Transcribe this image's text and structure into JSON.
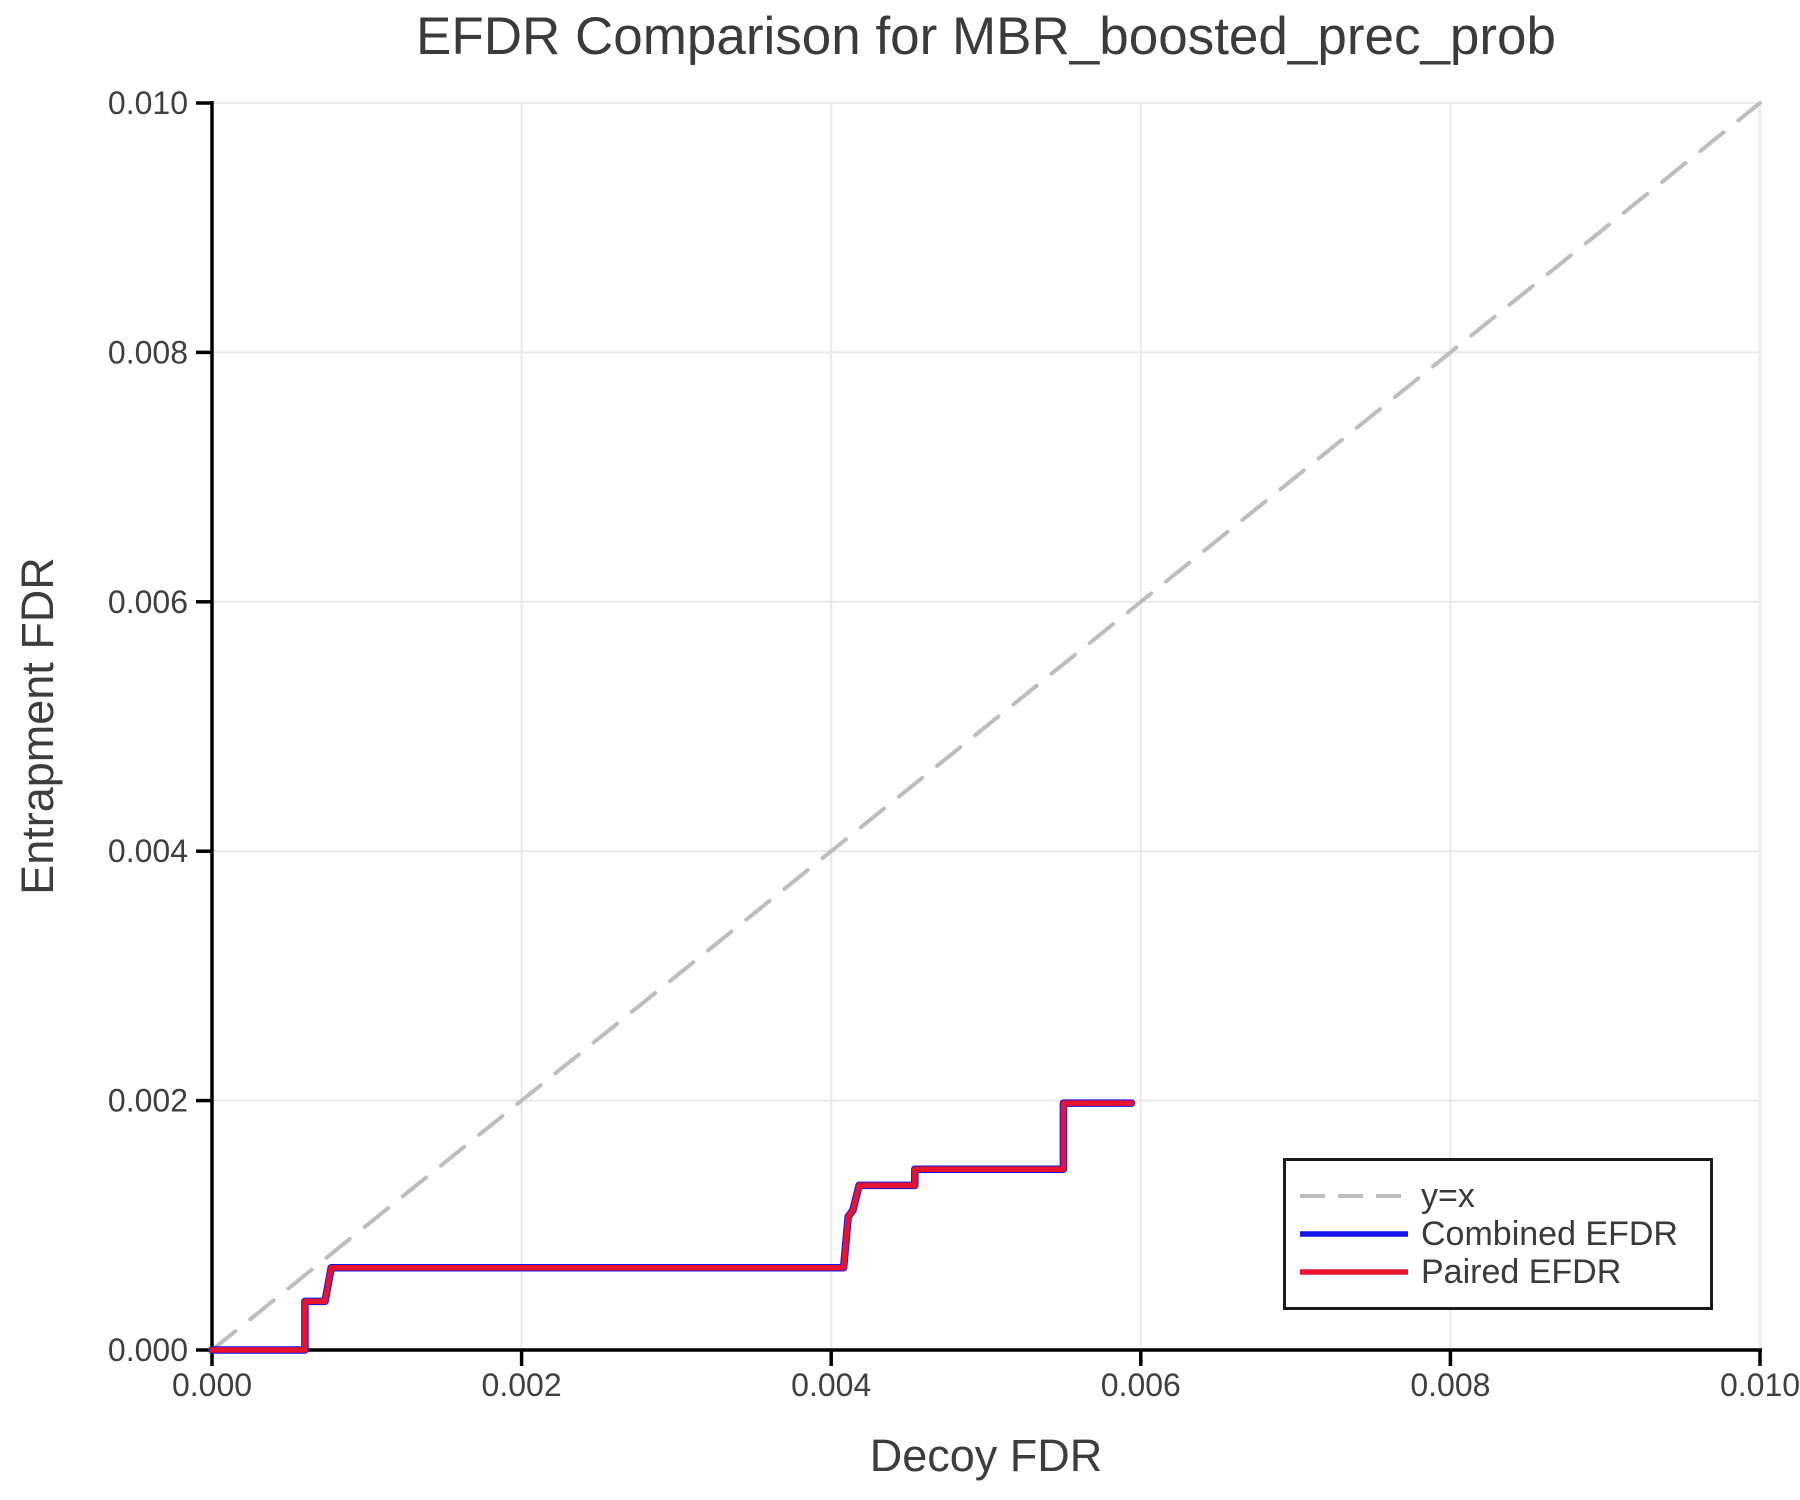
{
  "page": {
    "background": "#ffffff"
  },
  "chart_data": {
    "type": "line",
    "title": "EFDR Comparison for MBR_boosted_prec_prob",
    "xlabel": "Decoy FDR",
    "ylabel": "Entrapment FDR",
    "xlim": [
      0.0,
      0.01
    ],
    "ylim": [
      0.0,
      0.01
    ],
    "grid": true,
    "legend_position": "lower right",
    "xticks": {
      "values": [
        0.0,
        0.002,
        0.004,
        0.006,
        0.008,
        0.01
      ],
      "labels": [
        "0.000",
        "0.002",
        "0.004",
        "0.006",
        "0.008",
        "0.010"
      ]
    },
    "yticks": {
      "values": [
        0.0,
        0.002,
        0.004,
        0.006,
        0.008,
        0.01
      ],
      "labels": [
        "0.000",
        "0.002",
        "0.004",
        "0.006",
        "0.008",
        "0.010"
      ]
    },
    "series": [
      {
        "name": "y=x",
        "style": "dashed",
        "color": "#bdbdbd",
        "points": [
          [
            0.0,
            0.0
          ],
          [
            0.01,
            0.01
          ]
        ]
      },
      {
        "name": "Combined EFDR",
        "style": "solid",
        "color": "#1414e8",
        "points": [
          [
            0.0,
            0.0
          ],
          [
            0.0006,
            0.0
          ],
          [
            0.0006,
            0.00039
          ],
          [
            0.00073,
            0.00039
          ],
          [
            0.00077,
            0.00066
          ],
          [
            0.00408,
            0.00066
          ],
          [
            0.00411,
            0.00107
          ],
          [
            0.00414,
            0.00112
          ],
          [
            0.00418,
            0.00132
          ],
          [
            0.00454,
            0.00132
          ],
          [
            0.00454,
            0.00145
          ],
          [
            0.0055,
            0.00145
          ],
          [
            0.0055,
            0.00198
          ],
          [
            0.00594,
            0.00198
          ]
        ]
      },
      {
        "name": "Paired EFDR",
        "style": "solid",
        "color": "#e8132d",
        "points": [
          [
            0.0,
            0.0
          ],
          [
            0.0006,
            0.0
          ],
          [
            0.0006,
            0.00039
          ],
          [
            0.00073,
            0.00039
          ],
          [
            0.00077,
            0.00066
          ],
          [
            0.00408,
            0.00066
          ],
          [
            0.00411,
            0.00107
          ],
          [
            0.00414,
            0.00112
          ],
          [
            0.00418,
            0.00132
          ],
          [
            0.00454,
            0.00132
          ],
          [
            0.00454,
            0.00145
          ],
          [
            0.0055,
            0.00145
          ],
          [
            0.0055,
            0.00198
          ],
          [
            0.00594,
            0.00198
          ]
        ]
      }
    ],
    "colors": {
      "grid": "#e9e9e9",
      "spine": "#000000",
      "tick": "#000000",
      "tick_label": "#3f3f3f",
      "title": "#3b3b3b",
      "axis_label": "#3d3d3d"
    }
  }
}
